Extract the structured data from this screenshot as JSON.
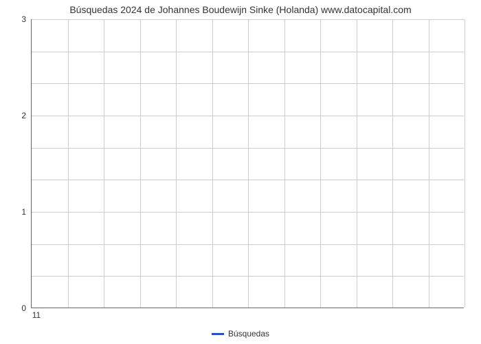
{
  "chart": {
    "type": "line",
    "title": "Búsquedas 2024 de Johannes Boudewijn Sinke (Holanda) www.datocapital.com",
    "title_fontsize": 14,
    "title_color": "#333333",
    "background_color": "#ffffff",
    "plot_border_color": "#666666",
    "grid_color": "#cccccc",
    "ylim": [
      0,
      3
    ],
    "y_ticks": [
      0,
      1,
      2,
      3
    ],
    "y_minor_divisions_per_major": 3,
    "x_ticks": [
      "11"
    ],
    "x_grid_count": 12,
    "series": [
      {
        "name": "Búsquedas",
        "color": "#2b4ec7",
        "values": []
      }
    ],
    "legend": {
      "position": "bottom",
      "items": [
        {
          "label": "Búsquedas",
          "color": "#2b4ec7"
        }
      ]
    },
    "axis_label_fontsize": 12,
    "axis_label_color": "#333333"
  }
}
